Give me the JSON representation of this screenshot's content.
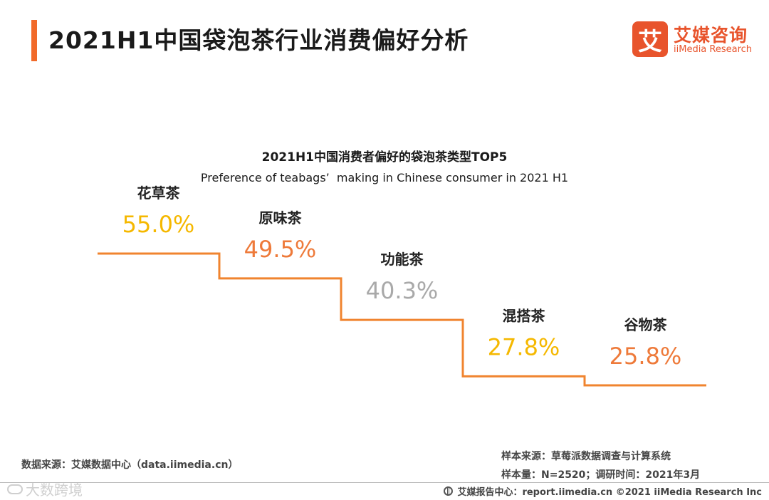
{
  "header": {
    "title": "2021H1中国袋泡茶行业消费偏好分析"
  },
  "logo": {
    "mark": "艾",
    "name_cn": "艾媒咨询",
    "name_en": "iiMedia Research"
  },
  "colors": {
    "accent": "#f16a2a",
    "line": "#f0842f",
    "yellow": "#f5b800",
    "orange": "#ee7a3a",
    "gray": "#a9a9a9"
  },
  "chart_data": {
    "type": "bar",
    "style": "step",
    "title": "2021H1中国消费者偏好的袋泡茶类型TOP5",
    "subtitle": "Preference of teabags’  making in Chinese consumer in 2021 H1",
    "categories": [
      "花草茶",
      "原味茶",
      "功能茶",
      "混搭茶",
      "谷物茶"
    ],
    "values": [
      55.0,
      49.5,
      40.3,
      27.8,
      25.8
    ],
    "value_labels": [
      "55.0%",
      "49.5%",
      "40.3%",
      "27.8%",
      "25.8%"
    ],
    "label_colors": [
      "#f5b800",
      "#ee7a3a",
      "#a9a9a9",
      "#f5b800",
      "#ee7a3a"
    ],
    "unit": "%",
    "xlabel": "",
    "ylabel": "",
    "ylim": [
      20,
      60
    ]
  },
  "sources": {
    "data_source": "数据来源：艾媒数据中心（data.iimedia.cn）",
    "sample_source": "样本来源：草莓派数据调查与计算系统",
    "sample_size": "样本量：N=2520；调研时间：2021年3月"
  },
  "footer": {
    "report_center": "艾媒报告中心：report.iimedia.cn  ©2021  iiMedia Research  Inc",
    "watermark": "大数跨境"
  }
}
